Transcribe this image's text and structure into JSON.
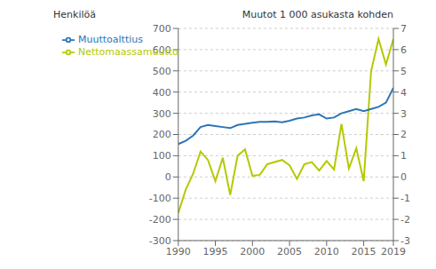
{
  "chart_data": {
    "type": "line",
    "ylabel": "Henkilöä",
    "y2label": "Muutot 1 000 asukasta kohden",
    "x": [
      1990,
      1991,
      1992,
      1993,
      1994,
      1995,
      1996,
      1997,
      1998,
      1999,
      2000,
      2001,
      2002,
      2003,
      2004,
      2005,
      2006,
      2007,
      2008,
      2009,
      2010,
      2011,
      2012,
      2013,
      2014,
      2015,
      2016,
      2017,
      2018,
      2019
    ],
    "series": [
      {
        "name": "Nettomaassamuutto",
        "color": "#b5c900",
        "axis": "y",
        "values": [
          -170,
          -60,
          15,
          120,
          80,
          -20,
          90,
          -85,
          100,
          130,
          5,
          10,
          60,
          70,
          80,
          55,
          -10,
          60,
          70,
          30,
          75,
          35,
          250,
          40,
          135,
          -20,
          500,
          650,
          530,
          650
        ]
      },
      {
        "name": "Muuttoalttius",
        "color": "#2e75b6",
        "axis": "y2",
        "values": [
          1.55,
          1.7,
          1.95,
          2.35,
          2.45,
          2.4,
          2.35,
          2.3,
          2.45,
          2.5,
          2.55,
          2.6,
          2.6,
          2.62,
          2.58,
          2.65,
          2.75,
          2.8,
          2.9,
          2.95,
          2.75,
          2.8,
          3.0,
          3.1,
          3.2,
          3.1,
          3.2,
          3.3,
          3.5,
          4.2
        ]
      }
    ],
    "xlim": [
      1990,
      2019
    ],
    "xticks": [
      1990,
      1995,
      2000,
      2005,
      2010,
      2015,
      2019
    ],
    "ylim": [
      -300,
      700
    ],
    "yticks": [
      -300,
      -200,
      -100,
      0,
      100,
      200,
      300,
      400,
      500,
      600,
      700
    ],
    "y2lim": [
      -3,
      7
    ],
    "y2ticks": [
      -3,
      -2,
      -1,
      0,
      1,
      2,
      3,
      4,
      5,
      6,
      7
    ],
    "grid": "y",
    "legend": "upper left"
  }
}
